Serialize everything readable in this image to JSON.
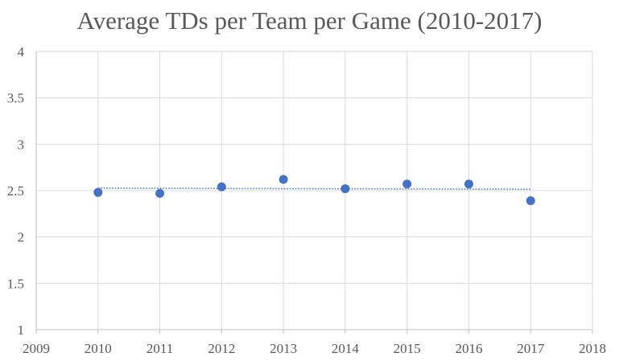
{
  "chart_data": {
    "type": "scatter",
    "title": "Average TDs per Team per Game (2010-2017)",
    "xlabel": "",
    "ylabel": "",
    "xlim": [
      2009,
      2018
    ],
    "ylim": [
      1,
      4
    ],
    "x_ticks": [
      "2009",
      "2010",
      "2011",
      "2012",
      "2013",
      "2014",
      "2015",
      "2016",
      "2017",
      "2018"
    ],
    "y_ticks": [
      "1",
      "1.5",
      "2",
      "2.5",
      "3",
      "3.5",
      "4"
    ],
    "grid": true,
    "legend": "none",
    "series": [
      {
        "x": [
          2010,
          2011,
          2012,
          2013,
          2014,
          2015,
          2016,
          2017
        ],
        "y": [
          2.48,
          2.47,
          2.54,
          2.62,
          2.52,
          2.57,
          2.57,
          2.39
        ],
        "color": "#4472C4",
        "trendline": {
          "type": "linear",
          "style": "dotted",
          "color": "#4472C4"
        }
      }
    ]
  }
}
